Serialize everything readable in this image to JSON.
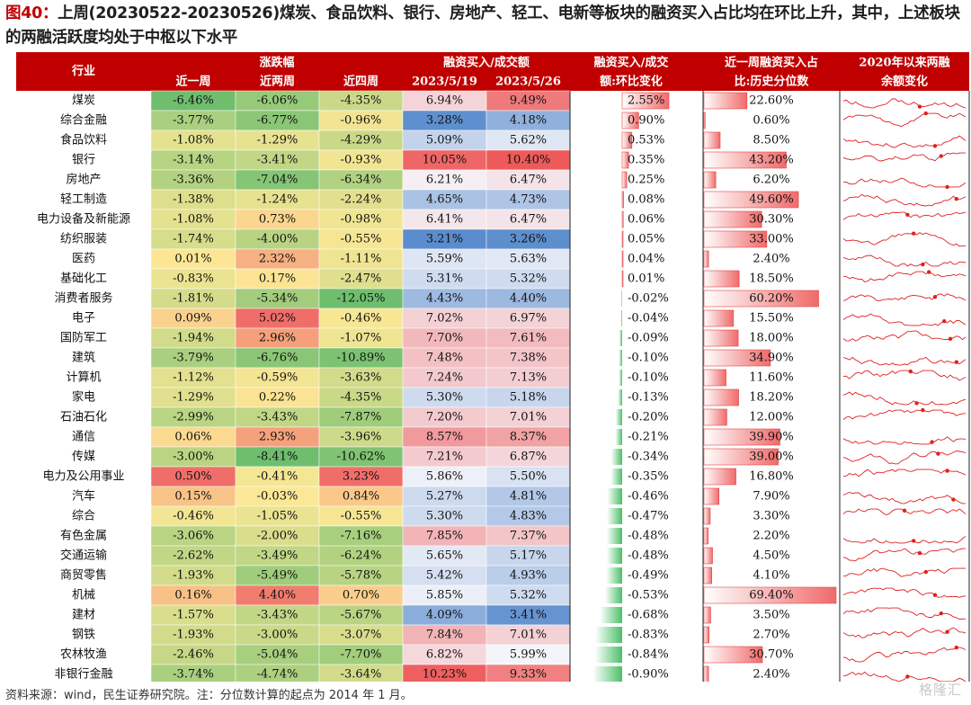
{
  "figure": {
    "label": "图40：",
    "title": "上周(20230522-20230526)煤炭、食品饮料、银行、房地产、轻工、电新等板块的融资买入占比均在环比上升，其中，上述板块的两融活跃度均处于中枢以下水平",
    "footnote": "资料来源：wind，民生证券研究院。注：分位数计算的起点为 2014 年 1 月。",
    "watermark": "格隆汇"
  },
  "colors": {
    "header_bg": "#c00000",
    "header_text": "#ffffff",
    "bar_red": "#e84040",
    "bar_green": "#3cb05a",
    "spark": "#e02020",
    "grid": "#ffffff"
  },
  "chart_data": {
    "type": "table",
    "header": {
      "industry": "行业",
      "change_group": "涨跌幅",
      "change_cols": [
        "近一周",
        "近两周",
        "近四周"
      ],
      "share_group": "融资买入/成交额",
      "share_cols": [
        "2023/5/19",
        "2023/5/26"
      ],
      "wow_line1": "融资买入/成交",
      "wow_line2": "额:环比变化",
      "pct_line1": "近一周融资买入占",
      "pct_line2": "比:历史分位数",
      "trend_line1": "2020年以来两融",
      "trend_line2": "余额变化"
    },
    "rows": [
      {
        "industry": "煤炭",
        "w1": "-6.46%",
        "w2": "-6.06%",
        "w4": "-4.35%",
        "s0519": "6.94%",
        "s0526": "9.49%",
        "wow": "2.55%",
        "pct": "22.60%"
      },
      {
        "industry": "综合金融",
        "w1": "-3.77%",
        "w2": "-6.77%",
        "w4": "-0.96%",
        "s0519": "3.28%",
        "s0526": "4.18%",
        "wow": "0.90%",
        "pct": "0.60%"
      },
      {
        "industry": "食品饮料",
        "w1": "-1.08%",
        "w2": "-1.29%",
        "w4": "-4.29%",
        "s0519": "5.09%",
        "s0526": "5.62%",
        "wow": "0.53%",
        "pct": "8.50%"
      },
      {
        "industry": "银行",
        "w1": "-3.14%",
        "w2": "-3.41%",
        "w4": "-0.93%",
        "s0519": "10.05%",
        "s0526": "10.40%",
        "wow": "0.35%",
        "pct": "43.20%"
      },
      {
        "industry": "房地产",
        "w1": "-3.36%",
        "w2": "-7.04%",
        "w4": "-6.34%",
        "s0519": "6.21%",
        "s0526": "6.47%",
        "wow": "0.25%",
        "pct": "6.20%"
      },
      {
        "industry": "轻工制造",
        "w1": "-1.38%",
        "w2": "-1.24%",
        "w4": "-2.24%",
        "s0519": "4.65%",
        "s0526": "4.73%",
        "wow": "0.08%",
        "pct": "49.60%"
      },
      {
        "industry": "电力设备及新能源",
        "w1": "-1.08%",
        "w2": "0.73%",
        "w4": "-0.98%",
        "s0519": "6.41%",
        "s0526": "6.47%",
        "wow": "0.06%",
        "pct": "30.30%"
      },
      {
        "industry": "纺织服装",
        "w1": "-1.74%",
        "w2": "-4.00%",
        "w4": "-0.55%",
        "s0519": "3.21%",
        "s0526": "3.26%",
        "wow": "0.05%",
        "pct": "33.00%"
      },
      {
        "industry": "医药",
        "w1": "0.01%",
        "w2": "2.32%",
        "w4": "-1.11%",
        "s0519": "5.59%",
        "s0526": "5.63%",
        "wow": "0.04%",
        "pct": "2.40%"
      },
      {
        "industry": "基础化工",
        "w1": "-0.83%",
        "w2": "0.17%",
        "w4": "-2.47%",
        "s0519": "5.31%",
        "s0526": "5.32%",
        "wow": "0.01%",
        "pct": "18.50%"
      },
      {
        "industry": "消费者服务",
        "w1": "-1.81%",
        "w2": "-5.34%",
        "w4": "-12.05%",
        "s0519": "4.43%",
        "s0526": "4.40%",
        "wow": "-0.02%",
        "pct": "60.20%"
      },
      {
        "industry": "电子",
        "w1": "0.09%",
        "w2": "5.02%",
        "w4": "-0.46%",
        "s0519": "7.02%",
        "s0526": "6.97%",
        "wow": "-0.04%",
        "pct": "15.50%"
      },
      {
        "industry": "国防军工",
        "w1": "-1.94%",
        "w2": "2.96%",
        "w4": "-1.07%",
        "s0519": "7.70%",
        "s0526": "7.61%",
        "wow": "-0.09%",
        "pct": "18.00%"
      },
      {
        "industry": "建筑",
        "w1": "-3.79%",
        "w2": "-6.76%",
        "w4": "-10.89%",
        "s0519": "7.48%",
        "s0526": "7.38%",
        "wow": "-0.10%",
        "pct": "34.90%"
      },
      {
        "industry": "计算机",
        "w1": "-1.12%",
        "w2": "-0.59%",
        "w4": "-3.63%",
        "s0519": "7.24%",
        "s0526": "7.13%",
        "wow": "-0.10%",
        "pct": "11.60%"
      },
      {
        "industry": "家电",
        "w1": "-1.29%",
        "w2": "0.22%",
        "w4": "-4.35%",
        "s0519": "5.30%",
        "s0526": "5.18%",
        "wow": "-0.13%",
        "pct": "18.20%"
      },
      {
        "industry": "石油石化",
        "w1": "-2.99%",
        "w2": "-3.43%",
        "w4": "-7.87%",
        "s0519": "7.20%",
        "s0526": "7.01%",
        "wow": "-0.20%",
        "pct": "12.00%"
      },
      {
        "industry": "通信",
        "w1": "0.06%",
        "w2": "2.93%",
        "w4": "-3.96%",
        "s0519": "8.57%",
        "s0526": "8.37%",
        "wow": "-0.21%",
        "pct": "39.90%"
      },
      {
        "industry": "传媒",
        "w1": "-3.00%",
        "w2": "-8.41%",
        "w4": "-10.62%",
        "s0519": "7.21%",
        "s0526": "6.87%",
        "wow": "-0.34%",
        "pct": "39.00%"
      },
      {
        "industry": "电力及公用事业",
        "w1": "0.50%",
        "w2": "-0.41%",
        "w4": "3.23%",
        "s0519": "5.86%",
        "s0526": "5.50%",
        "wow": "-0.35%",
        "pct": "16.80%"
      },
      {
        "industry": "汽车",
        "w1": "0.15%",
        "w2": "-0.03%",
        "w4": "0.84%",
        "s0519": "5.27%",
        "s0526": "4.81%",
        "wow": "-0.46%",
        "pct": "7.90%"
      },
      {
        "industry": "综合",
        "w1": "-0.46%",
        "w2": "-1.05%",
        "w4": "-0.55%",
        "s0519": "5.30%",
        "s0526": "4.83%",
        "wow": "-0.47%",
        "pct": "3.30%"
      },
      {
        "industry": "有色金属",
        "w1": "-3.06%",
        "w2": "-2.00%",
        "w4": "-7.16%",
        "s0519": "7.85%",
        "s0526": "7.37%",
        "wow": "-0.48%",
        "pct": "2.20%"
      },
      {
        "industry": "交通运输",
        "w1": "-2.62%",
        "w2": "-3.49%",
        "w4": "-6.24%",
        "s0519": "5.65%",
        "s0526": "5.17%",
        "wow": "-0.48%",
        "pct": "4.50%"
      },
      {
        "industry": "商贸零售",
        "w1": "-1.93%",
        "w2": "-5.49%",
        "w4": "-5.78%",
        "s0519": "5.42%",
        "s0526": "4.93%",
        "wow": "-0.49%",
        "pct": "4.10%"
      },
      {
        "industry": "机械",
        "w1": "0.16%",
        "w2": "4.40%",
        "w4": "0.70%",
        "s0519": "5.85%",
        "s0526": "5.32%",
        "wow": "-0.53%",
        "pct": "69.40%"
      },
      {
        "industry": "建材",
        "w1": "-1.57%",
        "w2": "-3.43%",
        "w4": "-5.67%",
        "s0519": "4.09%",
        "s0526": "3.41%",
        "wow": "-0.68%",
        "pct": "3.50%"
      },
      {
        "industry": "钢铁",
        "w1": "-1.93%",
        "w2": "-3.00%",
        "w4": "-3.07%",
        "s0519": "7.84%",
        "s0526": "7.01%",
        "wow": "-0.83%",
        "pct": "2.70%"
      },
      {
        "industry": "农林牧渔",
        "w1": "-2.46%",
        "w2": "-5.04%",
        "w4": "-7.70%",
        "s0519": "6.82%",
        "s0526": "5.99%",
        "wow": "-0.84%",
        "pct": "30.70%"
      },
      {
        "industry": "非银行金融",
        "w1": "-3.74%",
        "w2": "-4.74%",
        "w4": "-3.64%",
        "s0519": "10.23%",
        "s0526": "9.33%",
        "wow": "-0.90%",
        "pct": "2.40%"
      }
    ]
  }
}
